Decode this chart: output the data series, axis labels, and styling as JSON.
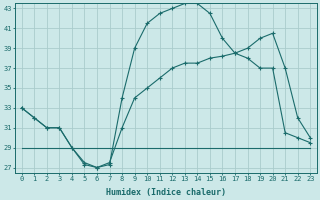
{
  "xlabel": "Humidex (Indice chaleur)",
  "background_color": "#cce8e8",
  "grid_color": "#aacccc",
  "line_color": "#1a6b6b",
  "xlim": [
    -0.5,
    23.5
  ],
  "ylim": [
    26.5,
    43.5
  ],
  "x_ticks": [
    0,
    1,
    2,
    3,
    4,
    5,
    6,
    7,
    8,
    9,
    10,
    11,
    12,
    13,
    14,
    15,
    16,
    17,
    18,
    19,
    20,
    21,
    22,
    23
  ],
  "y_ticks": [
    27,
    29,
    31,
    33,
    35,
    37,
    39,
    41,
    43
  ],
  "line1_x": [
    0,
    1,
    2,
    3,
    4,
    5,
    6,
    7,
    8,
    9,
    10,
    11,
    12,
    13,
    14,
    15,
    16,
    17,
    18,
    19,
    20,
    21,
    22,
    23
  ],
  "line1_y": [
    33,
    32,
    31,
    31,
    29,
    27.5,
    27,
    27.5,
    31,
    34,
    35,
    36,
    37,
    37.5,
    37.5,
    38,
    38.2,
    38.5,
    39,
    40,
    40.5,
    37,
    32,
    30
  ],
  "line2_x": [
    0,
    1,
    2,
    3,
    4,
    5,
    6,
    7,
    8,
    9,
    10,
    11,
    12,
    13,
    14,
    15,
    16,
    17,
    18,
    19,
    20,
    21,
    22,
    23
  ],
  "line2_y": [
    33,
    32,
    31,
    31,
    29,
    27.3,
    27,
    27.3,
    34,
    39,
    41.5,
    42.5,
    43,
    43.5,
    43.5,
    42.5,
    40,
    38.5,
    38,
    37,
    37,
    30.5,
    30,
    29.5
  ],
  "line3_x": [
    0,
    23
  ],
  "line3_y": [
    29,
    29
  ],
  "tick_fontsize": 5.0,
  "xlabel_fontsize": 6.0
}
